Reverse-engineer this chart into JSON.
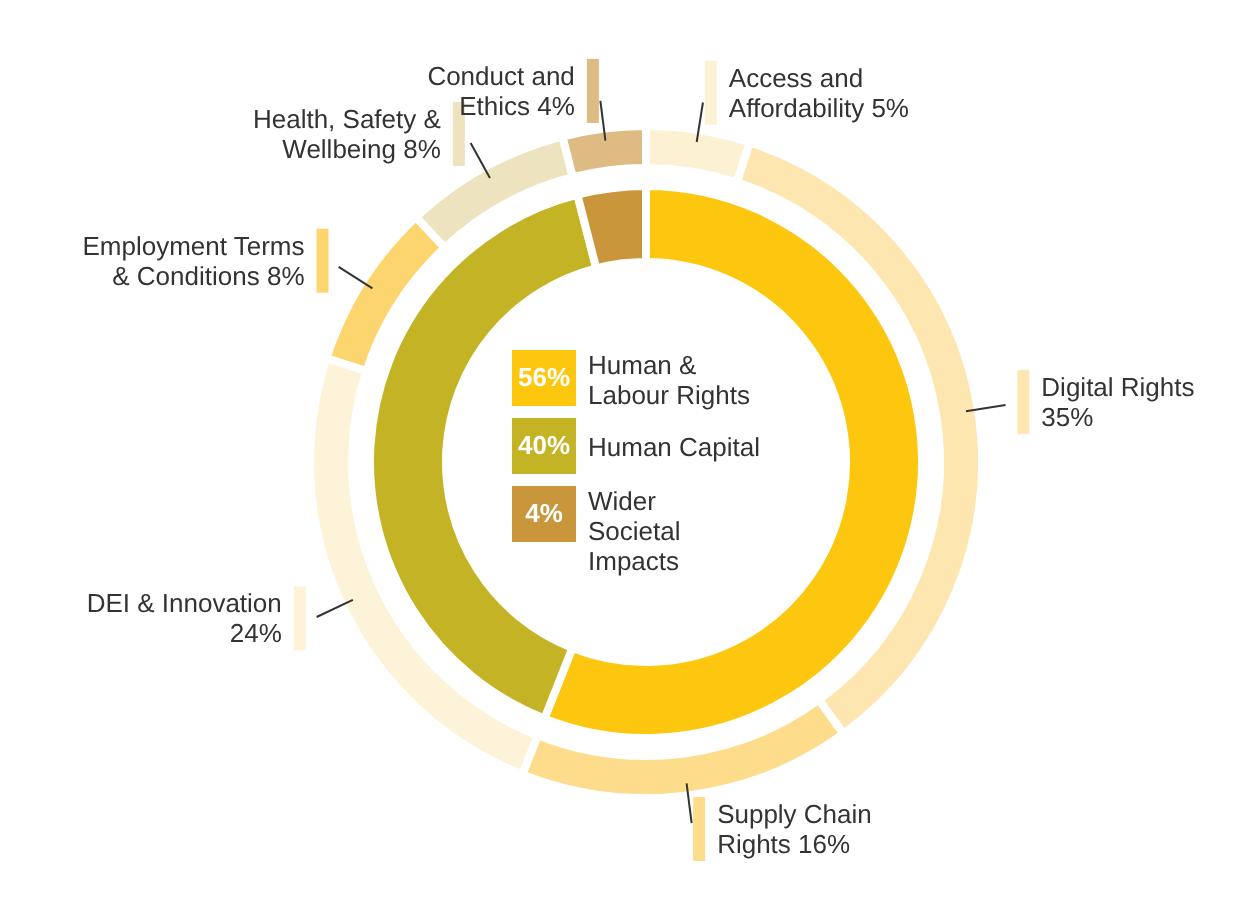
{
  "chart_data": [
    {
      "type": "donut",
      "categories": [
        "Human & Labour Rights",
        "Human Capital",
        "Wider Societal Impacts"
      ],
      "values": [
        56,
        40,
        4
      ],
      "value_labels": [
        "56%",
        "40%",
        "4%"
      ],
      "colors": [
        "#fdc70f",
        "#c4b324",
        "#c9963b"
      ],
      "legend": "center"
    },
    {
      "type": "donut",
      "categories": [
        "Access and Affordability",
        "Digital Rights",
        "Supply Chain Rights",
        "DEI & Innovation",
        "Employment Terms & Conditions",
        "Health, Safety & Wellbeing",
        "Conduct and Ethics"
      ],
      "values": [
        5,
        35,
        16,
        24,
        8,
        8,
        4
      ],
      "value_labels": [
        "5%",
        "35%",
        "16%",
        "24%",
        "8%",
        "8%",
        "4%"
      ],
      "colors": [
        "#fdf1d4",
        "#fde6b0",
        "#fddc8c",
        "#fdf3d9",
        "#fdd56e",
        "#eee3bf",
        "#dfbb84"
      ]
    }
  ]
}
